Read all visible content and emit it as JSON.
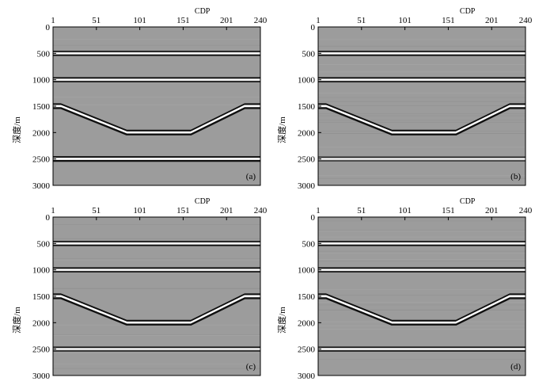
{
  "xaxis": {
    "title": "CDP",
    "ticks": [
      1,
      51,
      101,
      151,
      201,
      240
    ],
    "range": [
      1,
      240
    ]
  },
  "yaxis": {
    "title": "深度/m",
    "ticks": [
      0,
      500,
      1000,
      1500,
      2000,
      2500,
      3000
    ],
    "range": [
      0,
      3000
    ]
  },
  "panels": [
    {
      "label": "(a)",
      "bottom_reflector_strength": 1.0,
      "noise": 0.1
    },
    {
      "label": "(b)",
      "bottom_reflector_strength": 0.35,
      "noise": 0.55
    },
    {
      "label": "(c)",
      "bottom_reflector_strength": 0.45,
      "noise": 0.35
    },
    {
      "label": "(d)",
      "bottom_reflector_strength": 0.55,
      "noise": 0.55
    }
  ],
  "model": {
    "flat_reflectors_depth_m": [
      500,
      1000
    ],
    "trough": {
      "shoulder_depth_m": 1500,
      "floor_depth_m": 2000,
      "cdp_points": [
        1,
        10,
        86,
        160,
        222,
        240
      ],
      "depth_points": [
        1500,
        1500,
        2000,
        2000,
        1500,
        1500
      ]
    },
    "deep_reflector_depth_m": 2500
  },
  "colors": {
    "background": "#9c9c9c",
    "bright": "#ffffff",
    "dark": "#101010"
  }
}
